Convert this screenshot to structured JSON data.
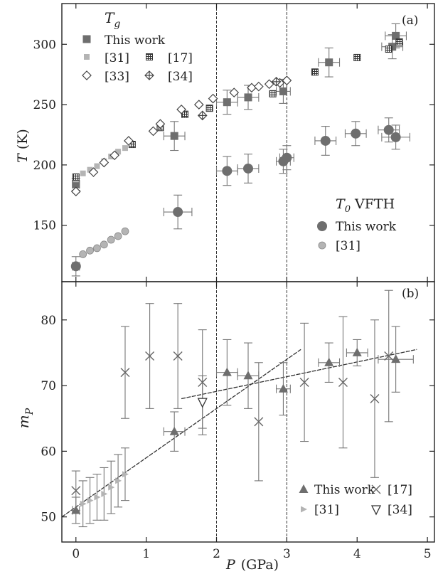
{
  "chart_data": [
    {
      "type": "scatter",
      "panel_label": "(a)",
      "ylabel": "T (K)",
      "ylabel_symbol": "T",
      "ylabel_unit": "(K)",
      "xlim": [
        -0.2,
        5.1
      ],
      "ylim": [
        105,
        332
      ],
      "yticks": [
        150,
        200,
        250,
        300
      ],
      "vlines": [
        2,
        3
      ],
      "legend_groups": [
        {
          "title": "Tg",
          "title_main": "T",
          "title_sub": "g",
          "position": "top-left"
        },
        {
          "title": "T0 VFTH",
          "title_main": "T",
          "title_sub": "0",
          "title_rest": " VFTH",
          "position": "center-right"
        }
      ],
      "series": [
        {
          "name": "This work",
          "group": "Tg",
          "marker": "square-dark",
          "points": [
            [
              0.0,
              184
            ],
            [
              1.4,
              224
            ],
            [
              2.15,
              252
            ],
            [
              2.45,
              256
            ],
            [
              2.95,
              261
            ],
            [
              3.6,
              285
            ],
            [
              4.5,
              298
            ],
            [
              4.55,
              307
            ]
          ],
          "xerr": [
            0.05,
            0.15,
            0.15,
            0.15,
            0.1,
            0.15,
            0.15,
            0.15
          ],
          "yerr": [
            5,
            12,
            10,
            10,
            10,
            12,
            10,
            10
          ]
        },
        {
          "name": "[31]",
          "group": "Tg",
          "marker": "square-light",
          "points": [
            [
              0.0,
              188
            ],
            [
              0.1,
              193
            ],
            [
              0.2,
              196
            ],
            [
              0.3,
              199
            ],
            [
              0.4,
              203
            ],
            [
              0.5,
              207
            ],
            [
              0.6,
              211
            ],
            [
              0.7,
              214
            ]
          ]
        },
        {
          "name": "[17]",
          "group": "Tg",
          "marker": "square-hatched",
          "points": [
            [
              0.0,
              190
            ],
            [
              0.8,
              217
            ],
            [
              1.2,
              231
            ],
            [
              1.55,
              242
            ],
            [
              1.9,
              247
            ],
            [
              2.8,
              259
            ],
            [
              3.4,
              277
            ],
            [
              4.0,
              289
            ],
            [
              4.45,
              296
            ],
            [
              4.6,
              302
            ]
          ]
        },
        {
          "name": "[33]",
          "group": "Tg",
          "marker": "diamond-open",
          "points": [
            [
              0.0,
              178
            ],
            [
              0.25,
              194
            ],
            [
              0.4,
              202
            ],
            [
              0.55,
              208
            ],
            [
              0.75,
              220
            ],
            [
              1.1,
              228
            ],
            [
              1.2,
              234
            ],
            [
              1.5,
              246
            ],
            [
              1.75,
              250
            ],
            [
              1.95,
              255
            ],
            [
              2.25,
              260
            ],
            [
              2.5,
              264
            ],
            [
              2.6,
              265
            ],
            [
              2.75,
              267
            ],
            [
              2.9,
              268
            ],
            [
              3.0,
              270
            ]
          ]
        },
        {
          "name": "[34]",
          "group": "Tg",
          "marker": "diamond-cross",
          "points": [
            [
              1.8,
              241
            ],
            [
              2.85,
              269
            ]
          ]
        },
        {
          "name": "This work",
          "group": "T0 VFTH",
          "marker": "circle-dark",
          "points": [
            [
              0.0,
              116
            ],
            [
              1.45,
              161
            ],
            [
              2.15,
              195
            ],
            [
              2.45,
              197
            ],
            [
              2.95,
              203
            ],
            [
              3.0,
              206
            ],
            [
              3.55,
              220
            ],
            [
              3.98,
              226
            ],
            [
              4.45,
              229
            ],
            [
              4.55,
              223
            ]
          ],
          "xerr": [
            0.05,
            0.2,
            0.15,
            0.15,
            0.1,
            0.1,
            0.15,
            0.15,
            0.15,
            0.2
          ],
          "yerr": [
            8,
            14,
            12,
            12,
            10,
            10,
            12,
            10,
            10,
            10
          ]
        },
        {
          "name": "[31]",
          "group": "T0 VFTH",
          "marker": "circle-light",
          "points": [
            [
              0.1,
              126
            ],
            [
              0.2,
              129
            ],
            [
              0.3,
              131
            ],
            [
              0.4,
              134
            ],
            [
              0.5,
              138
            ],
            [
              0.6,
              141
            ],
            [
              0.7,
              145
            ]
          ]
        }
      ]
    },
    {
      "type": "scatter",
      "panel_label": "(b)",
      "xlabel": "P (GPa)",
      "xlabel_symbol": "P",
      "xlabel_unit": "(GPa)",
      "ylabel": "mP",
      "ylabel_main": "m",
      "ylabel_sub": "P",
      "xlim": [
        -0.2,
        5.1
      ],
      "xticks": [
        0,
        1,
        2,
        3,
        4,
        5
      ],
      "ylim": [
        46.5,
        85.5
      ],
      "yticks": [
        50,
        60,
        70,
        80
      ],
      "vlines": [
        2,
        3
      ],
      "legend_position": "bottom-right",
      "series": [
        {
          "name": "This work",
          "marker": "triangle-up-dark",
          "points": [
            [
              0.0,
              51
            ],
            [
              1.4,
              63
            ],
            [
              2.15,
              72
            ],
            [
              2.45,
              71.5
            ],
            [
              2.95,
              69.5
            ],
            [
              3.6,
              73.5
            ],
            [
              4.0,
              75
            ],
            [
              4.55,
              74
            ]
          ],
          "xerr": [
            0.05,
            0.15,
            0.15,
            0.15,
            0.1,
            0.15,
            0.15,
            0.25
          ],
          "yerr": [
            2,
            3,
            5,
            5,
            4,
            3,
            2,
            5
          ]
        },
        {
          "name": "[31]",
          "marker": "triangle-right-light",
          "points": [
            [
              0.1,
              52
            ],
            [
              0.2,
              52.5
            ],
            [
              0.3,
              53
            ],
            [
              0.4,
              53.5
            ],
            [
              0.5,
              54.5
            ],
            [
              0.6,
              55.5
            ],
            [
              0.7,
              56.5
            ]
          ],
          "yerr": [
            3.5,
            3.5,
            3.5,
            4,
            4,
            4,
            4
          ]
        },
        {
          "name": "[17]",
          "marker": "cross",
          "points": [
            [
              0.0,
              54
            ],
            [
              0.7,
              72
            ],
            [
              1.05,
              74.5
            ],
            [
              1.45,
              74.5
            ],
            [
              1.8,
              70.5
            ],
            [
              2.6,
              64.5
            ],
            [
              3.25,
              70.5
            ],
            [
              3.8,
              70.5
            ],
            [
              4.25,
              68
            ],
            [
              4.45,
              74.5
            ]
          ],
          "yerr": [
            3,
            7,
            8,
            8,
            8,
            9,
            9,
            10,
            12,
            10
          ]
        },
        {
          "name": "[34]",
          "marker": "triangle-down-open",
          "points": [
            [
              1.8,
              67.5
            ]
          ],
          "yerr": [
            4
          ]
        }
      ],
      "fit_lines": [
        {
          "points": [
            [
              -0.2,
              50
            ],
            [
              3.2,
              75.5
            ]
          ]
        },
        {
          "points": [
            [
              1.5,
              68
            ],
            [
              4.85,
              75.5
            ]
          ]
        }
      ]
    }
  ]
}
